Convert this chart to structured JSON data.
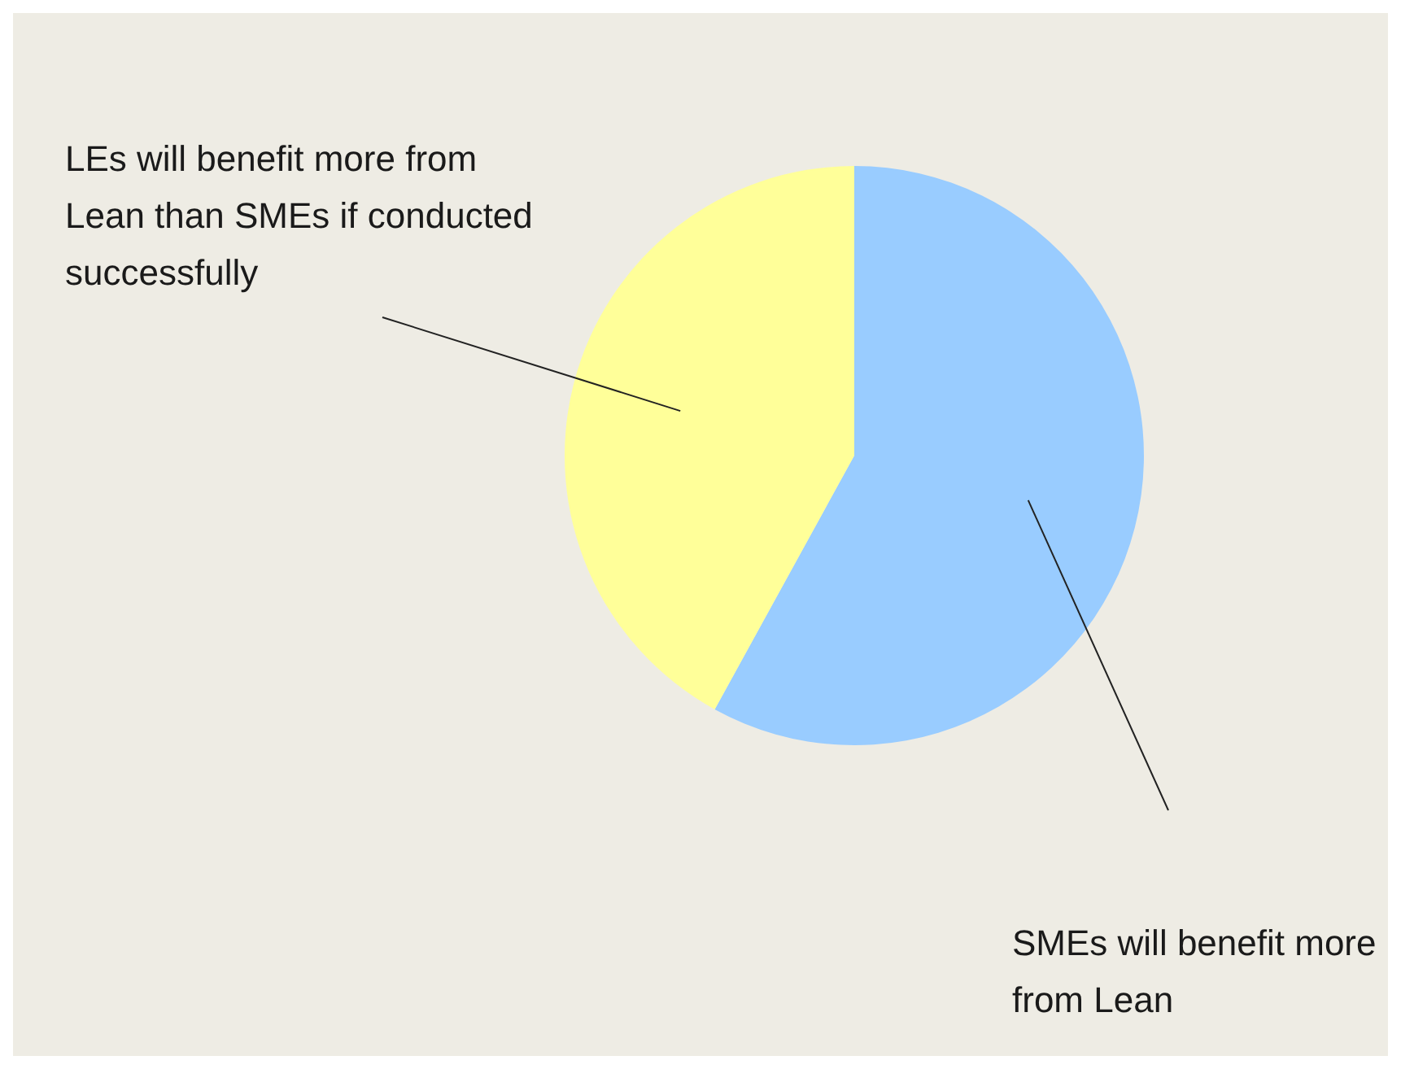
{
  "chart_data": {
    "type": "pie",
    "categories": [
      "SMEs will benefit more from Lean",
      "LEs will benefit more from Lean than SMEs if conducted successfully"
    ],
    "values": [
      58,
      42
    ],
    "colors": [
      "#99ccff",
      "#ffff99"
    ]
  }
}
